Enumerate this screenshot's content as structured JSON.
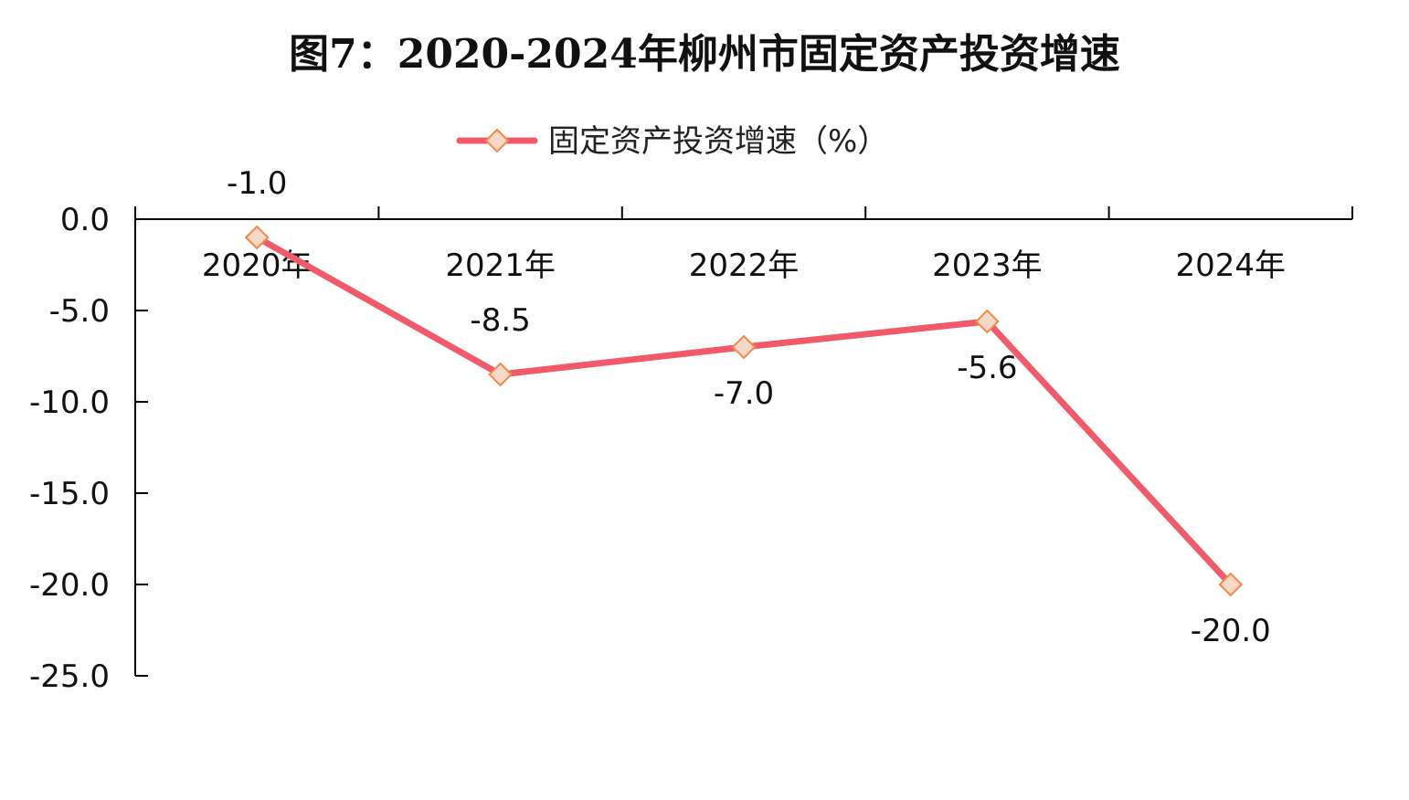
{
  "chart_data": {
    "type": "line",
    "title": "图7：2020-2024年柳州市固定资产投资增速",
    "xlabel": "",
    "ylabel": "",
    "categories": [
      "2020年",
      "2021年",
      "2022年",
      "2023年",
      "2024年"
    ],
    "series": [
      {
        "name": "固定资产投资增速（%）",
        "values": [
          -1.0,
          -8.5,
          -7.0,
          -5.6,
          -20.0
        ],
        "data_labels": [
          "-1.0",
          "-8.5",
          "-7.0",
          "-5.6",
          "-20.0"
        ],
        "color": "#F05A6A",
        "marker": "diamond",
        "marker_fill": "#F8D9C8",
        "marker_stroke": "#F08A4B"
      }
    ],
    "y_ticks": [
      "0.0",
      "-5.0",
      "-10.0",
      "-15.0",
      "-20.0",
      "-25.0"
    ],
    "ylim": [
      -25,
      0
    ],
    "grid": false,
    "legend_position": "top"
  }
}
